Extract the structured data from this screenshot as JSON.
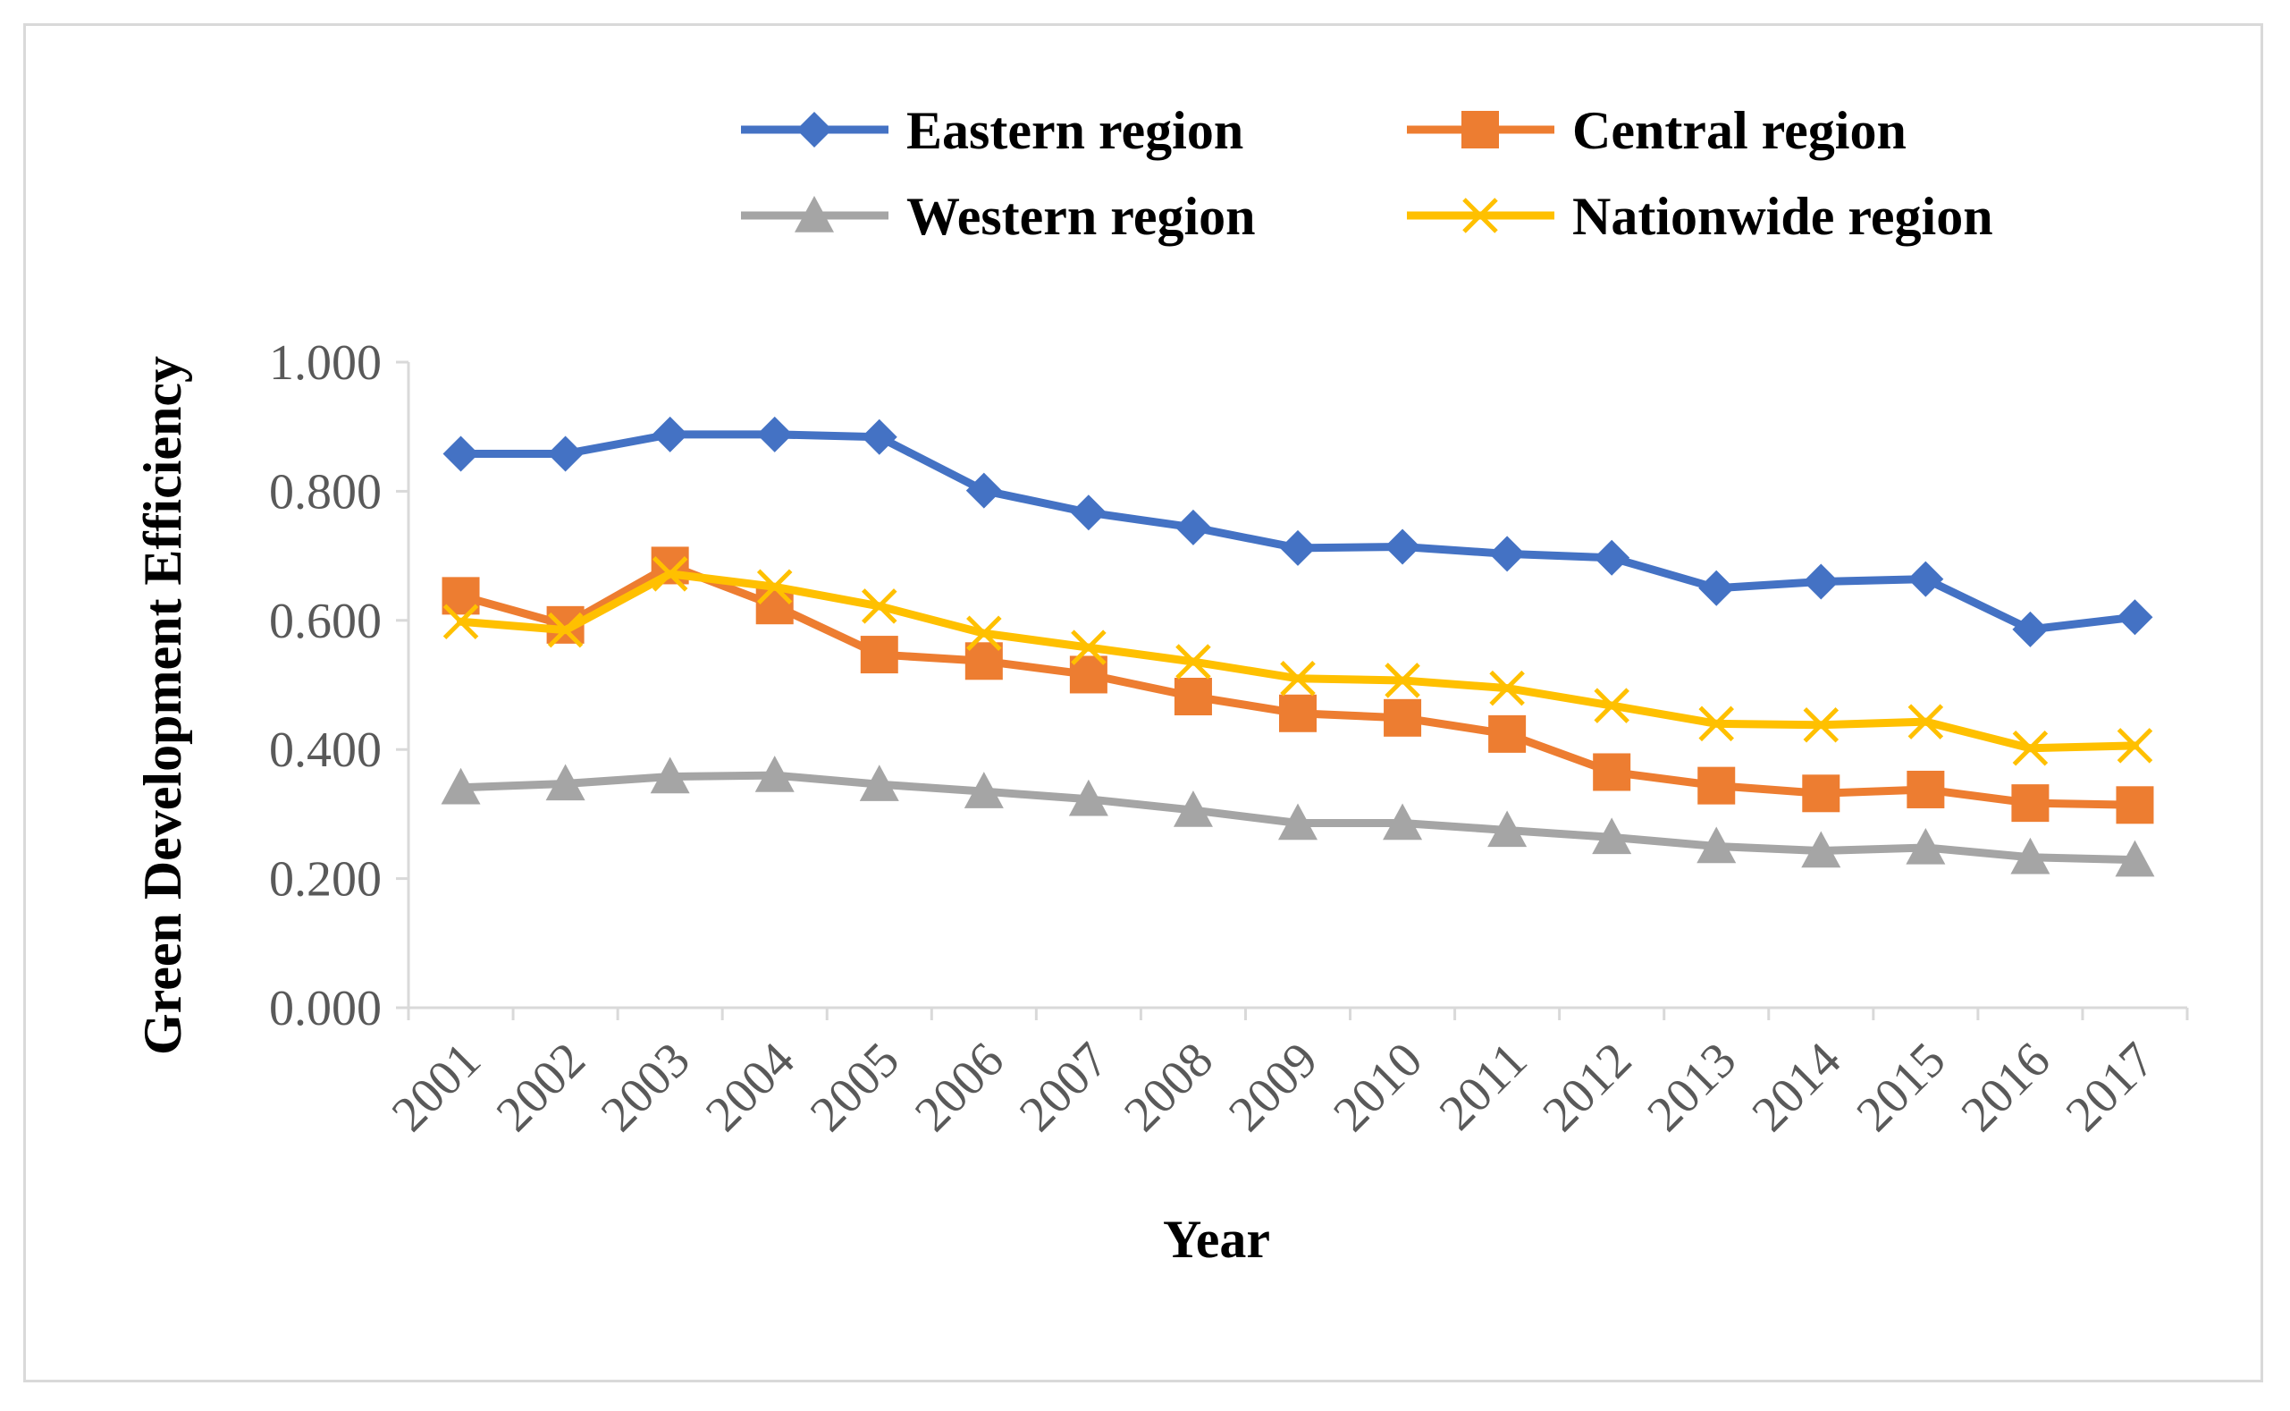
{
  "chart_data": {
    "type": "line",
    "title": "",
    "xlabel": "Year",
    "ylabel": "Green  Development Efficiency",
    "ylim": [
      0,
      1
    ],
    "yticks": [
      "0.000",
      "0.200",
      "0.400",
      "0.600",
      "0.800",
      "1.000"
    ],
    "ytick_values": [
      0,
      0.2,
      0.4,
      0.6,
      0.8,
      1.0
    ],
    "categories": [
      "2001",
      "2002",
      "2003",
      "2004",
      "2005",
      "2006",
      "2007",
      "2008",
      "2009",
      "2010",
      "2011",
      "2012",
      "2013",
      "2014",
      "2015",
      "2016",
      "2017"
    ],
    "legend_position": "top",
    "grid": false,
    "series": [
      {
        "name": "Eastern region",
        "color": "#4472c4",
        "marker": "diamond",
        "values": [
          0.858,
          0.858,
          0.888,
          0.888,
          0.884,
          0.801,
          0.767,
          0.744,
          0.712,
          0.714,
          0.703,
          0.697,
          0.65,
          0.66,
          0.664,
          0.586,
          0.605
        ]
      },
      {
        "name": "Central region",
        "color": "#ed7d31",
        "marker": "square",
        "values": [
          0.638,
          0.593,
          0.685,
          0.623,
          0.547,
          0.537,
          0.516,
          0.482,
          0.456,
          0.449,
          0.424,
          0.365,
          0.344,
          0.332,
          0.338,
          0.317,
          0.314
        ]
      },
      {
        "name": "Western region",
        "color": "#a5a5a5",
        "marker": "triangle",
        "values": [
          0.341,
          0.347,
          0.358,
          0.36,
          0.346,
          0.335,
          0.323,
          0.306,
          0.286,
          0.286,
          0.275,
          0.264,
          0.25,
          0.243,
          0.248,
          0.233,
          0.229
        ]
      },
      {
        "name": "Nationwide region",
        "color": "#ffc000",
        "marker": "x",
        "values": [
          0.598,
          0.585,
          0.672,
          0.652,
          0.622,
          0.58,
          0.558,
          0.536,
          0.51,
          0.507,
          0.495,
          0.468,
          0.44,
          0.438,
          0.443,
          0.402,
          0.406
        ]
      }
    ]
  }
}
